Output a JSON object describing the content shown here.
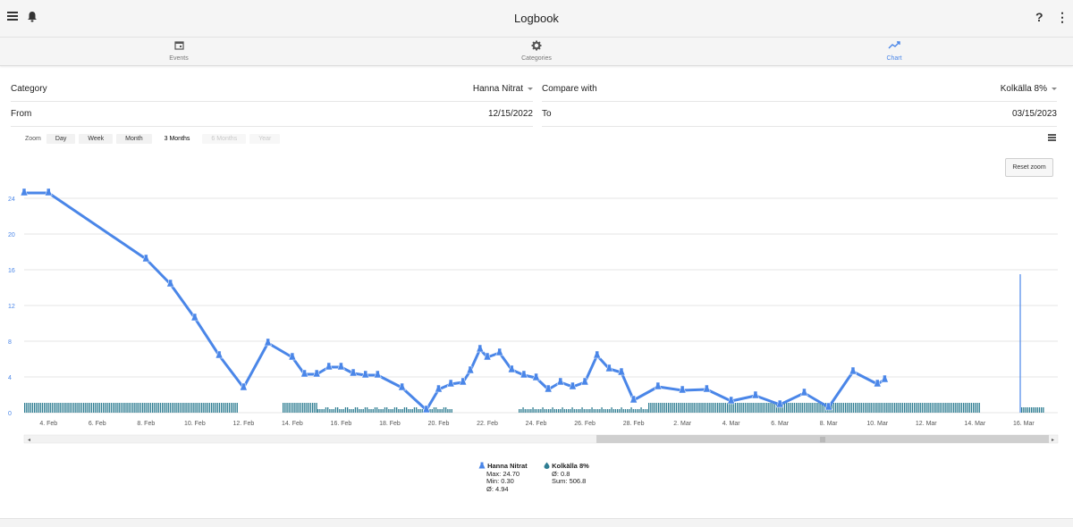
{
  "app": {
    "title": "Logbook"
  },
  "icons": {
    "menu": "menu-icon",
    "bell": "bell-icon",
    "help": "?",
    "more": "⋮"
  },
  "tabs": [
    {
      "label": "Events",
      "icon": "calendar-icon",
      "active": false
    },
    {
      "label": "Categories",
      "icon": "gear-icon",
      "active": false
    },
    {
      "label": "Chart",
      "icon": "trending-up-icon",
      "active": true
    }
  ],
  "form": {
    "category_label": "Category",
    "category_value": "Hanna Nitrat",
    "compare_label": "Compare with",
    "compare_value": "Kolkälla 8%",
    "from_label": "From",
    "from_value": "12/15/2022",
    "to_label": "To",
    "to_value": "03/15/2023"
  },
  "zoom": {
    "label": "Zoom",
    "buttons": [
      {
        "label": "Day",
        "state": "normal"
      },
      {
        "label": "Week",
        "state": "normal"
      },
      {
        "label": "Month",
        "state": "normal"
      },
      {
        "label": "3 Months",
        "state": "selected"
      },
      {
        "label": "6 Months",
        "state": "disabled"
      },
      {
        "label": "Year",
        "state": "disabled"
      }
    ]
  },
  "reset_zoom_label": "Reset zoom",
  "colors": {
    "line": "#4a86e8",
    "bars": "#2e7d92",
    "grid": "#e6e6e6",
    "axis_text": "#4a86e8"
  },
  "chart_data": {
    "type": "line",
    "y_ticks": [
      "0",
      "4",
      "8",
      "12",
      "16",
      "20",
      "24"
    ],
    "ylim": [
      0,
      26
    ],
    "x_ticks": [
      "4. Feb",
      "6. Feb",
      "8. Feb",
      "10. Feb",
      "12. Feb",
      "14. Feb",
      "16. Feb",
      "18. Feb",
      "20. Feb",
      "22. Feb",
      "24. Feb",
      "26. Feb",
      "28. Feb",
      "2. Mar",
      "4. Mar",
      "6. Mar",
      "8. Mar",
      "10. Mar",
      "12. Mar",
      "14. Mar",
      "16. Mar"
    ],
    "series": [
      {
        "name": "Hanna Nitrat",
        "points": [
          {
            "x": "2023-02-03",
            "y": 24.6
          },
          {
            "x": "2023-02-04",
            "y": 24.6
          },
          {
            "x": "2023-02-08",
            "y": 17.2
          },
          {
            "x": "2023-02-09",
            "y": 14.4
          },
          {
            "x": "2023-02-10",
            "y": 10.6
          },
          {
            "x": "2023-02-11",
            "y": 6.4
          },
          {
            "x": "2023-02-12",
            "y": 2.8
          },
          {
            "x": "2023-02-13",
            "y": 7.8
          },
          {
            "x": "2023-02-14",
            "y": 6.2
          },
          {
            "x": "2023-02-14.5",
            "y": 4.3
          },
          {
            "x": "2023-02-15",
            "y": 4.3
          },
          {
            "x": "2023-02-15.5",
            "y": 5.1
          },
          {
            "x": "2023-02-16",
            "y": 5.1
          },
          {
            "x": "2023-02-16.5",
            "y": 4.4
          },
          {
            "x": "2023-02-17",
            "y": 4.2
          },
          {
            "x": "2023-02-17.5",
            "y": 4.2
          },
          {
            "x": "2023-02-18.5",
            "y": 2.8
          },
          {
            "x": "2023-02-19.5",
            "y": 0.3
          },
          {
            "x": "2023-02-20",
            "y": 2.6
          },
          {
            "x": "2023-02-20.5",
            "y": 3.2
          },
          {
            "x": "2023-02-21",
            "y": 3.4
          },
          {
            "x": "2023-02-21.3",
            "y": 4.7
          },
          {
            "x": "2023-02-21.7",
            "y": 7.1
          },
          {
            "x": "2023-02-22",
            "y": 6.2
          },
          {
            "x": "2023-02-22.5",
            "y": 6.7
          },
          {
            "x": "2023-02-23",
            "y": 4.8
          },
          {
            "x": "2023-02-23.5",
            "y": 4.2
          },
          {
            "x": "2023-02-24",
            "y": 3.9
          },
          {
            "x": "2023-02-24.5",
            "y": 2.6
          },
          {
            "x": "2023-02-25",
            "y": 3.4
          },
          {
            "x": "2023-02-25.5",
            "y": 2.9
          },
          {
            "x": "2023-02-26",
            "y": 3.4
          },
          {
            "x": "2023-02-26.5",
            "y": 6.4
          },
          {
            "x": "2023-02-27",
            "y": 4.9
          },
          {
            "x": "2023-02-27.5",
            "y": 4.5
          },
          {
            "x": "2023-02-28",
            "y": 1.4
          },
          {
            "x": "2023-03-01",
            "y": 2.9
          },
          {
            "x": "2023-03-02",
            "y": 2.5
          },
          {
            "x": "2023-03-03",
            "y": 2.6
          },
          {
            "x": "2023-03-04",
            "y": 1.3
          },
          {
            "x": "2023-03-05",
            "y": 1.9
          },
          {
            "x": "2023-03-06",
            "y": 0.9
          },
          {
            "x": "2023-03-07",
            "y": 2.2
          },
          {
            "x": "2023-03-08",
            "y": 0.6
          },
          {
            "x": "2023-03-09",
            "y": 4.6
          },
          {
            "x": "2023-03-10",
            "y": 3.2
          },
          {
            "x": "2023-03-10.3",
            "y": 3.7
          }
        ]
      },
      {
        "name": "Kolkälla 8%",
        "type": "bar",
        "note": "daily dosing columns along baseline"
      }
    ],
    "grid": true,
    "legend": "bottom-center"
  },
  "legend": [
    {
      "name": "Hanna Nitrat",
      "icon": "flask-icon",
      "stats": [
        "Max: 24.70",
        "Min: 0.30",
        "Ø: 4.94"
      ]
    },
    {
      "name": "Kolkälla 8%",
      "icon": "drop-icon",
      "stats": [
        "Ø: 0.8",
        "Sum: 506.8"
      ]
    }
  ]
}
